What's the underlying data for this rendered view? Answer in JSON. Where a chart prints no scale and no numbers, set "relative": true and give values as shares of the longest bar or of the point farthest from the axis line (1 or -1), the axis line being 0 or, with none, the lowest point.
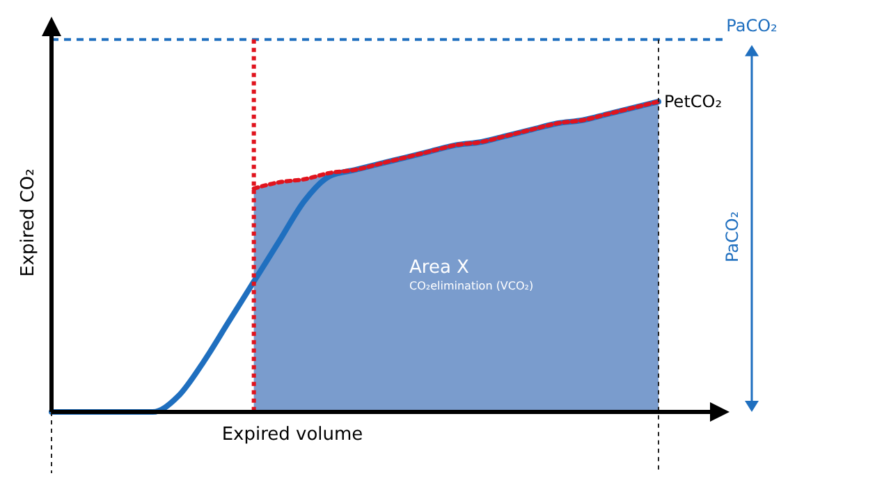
{
  "chart_data": {
    "type": "line",
    "relative": true,
    "xlabel": "Expired volume",
    "ylabel": "Expired CO₂",
    "categories": [
      null,
      null,
      null,
      null,
      null,
      null,
      null,
      null,
      null,
      null,
      null,
      null,
      null,
      null,
      null,
      null,
      null,
      null,
      null,
      null,
      null,
      null,
      null,
      null,
      null
    ],
    "series": [
      {
        "type": "area",
        "color": "#7a9ccd",
        "values": [
          null,
          null,
          null,
          null,
          null,
          null,
          null,
          null,
          0.72,
          0.74,
          0.75,
          0.77,
          0.78,
          0.8,
          0.82,
          0.84,
          0.86,
          0.87,
          0.89,
          0.91,
          0.93,
          0.94,
          0.96,
          0.98,
          1.0
        ]
      },
      {
        "color": "#1f6fbf",
        "line_style": "solid",
        "values": [
          0,
          0,
          0,
          0,
          0,
          0.05,
          0.16,
          0.29,
          0.42,
          0.55,
          0.68,
          0.76,
          0.78,
          0.8,
          0.82,
          0.84,
          0.86,
          0.87,
          0.89,
          0.91,
          0.93,
          0.94,
          0.96,
          0.98,
          1.0
        ]
      },
      {
        "type": "line",
        "color": "#e0141e",
        "line_style": "dotted",
        "values": [
          null,
          null,
          null,
          null,
          null,
          null,
          null,
          null,
          0.72,
          0.74,
          0.75,
          0.77,
          0.78,
          0.8,
          0.82,
          0.84,
          0.86,
          0.87,
          0.89,
          0.91,
          0.93,
          0.94,
          0.96,
          0.98,
          1.0
        ]
      }
    ],
    "ref_lines": [
      {
        "axis": "y",
        "value": 1.2,
        "label": "PaCO₂",
        "color": "#1f6fbf",
        "line_style": "dashed"
      }
    ],
    "annotations": [
      "Area X",
      "CO₂elimination (VCO₂)",
      "PetCO₂",
      "PaCO₂"
    ]
  }
}
